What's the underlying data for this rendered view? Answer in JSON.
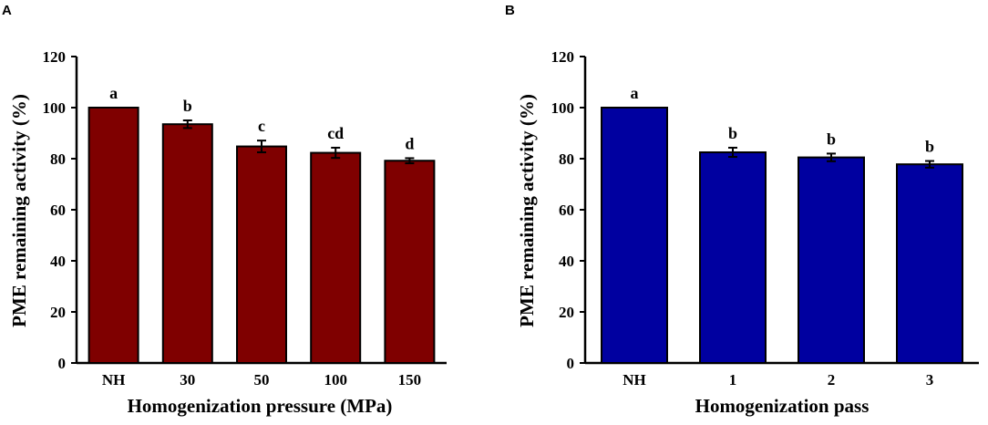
{
  "chart_data": [
    {
      "type": "bar",
      "panel": "A",
      "categories": [
        "NH",
        "30",
        "50",
        "100",
        "150"
      ],
      "values": [
        100,
        93.5,
        84.8,
        82.3,
        79.2
      ],
      "errors": [
        0,
        1.5,
        2.3,
        2.0,
        1.0
      ],
      "significance": [
        "a",
        "b",
        "c",
        "cd",
        "d"
      ],
      "bar_color": "#7f0000",
      "xlabel": "Homogenization pressure (MPa)",
      "ylabel": "PME remaining activity (%)",
      "ylim": [
        0,
        120
      ],
      "yticks": [
        "0",
        "20",
        "40",
        "60",
        "80",
        "100",
        "120"
      ]
    },
    {
      "type": "bar",
      "panel": "B",
      "categories": [
        "NH",
        "1",
        "2",
        "3"
      ],
      "values": [
        100,
        82.5,
        80.5,
        77.8
      ],
      "errors": [
        0,
        1.8,
        1.5,
        1.3
      ],
      "significance": [
        "a",
        "b",
        "b",
        "b"
      ],
      "bar_color": "#0000a0",
      "xlabel": "Homogenization pass",
      "ylabel": "PME remaining activity (%)",
      "ylim": [
        0,
        120
      ],
      "yticks": [
        "0",
        "20",
        "40",
        "60",
        "80",
        "100",
        "120"
      ]
    }
  ]
}
